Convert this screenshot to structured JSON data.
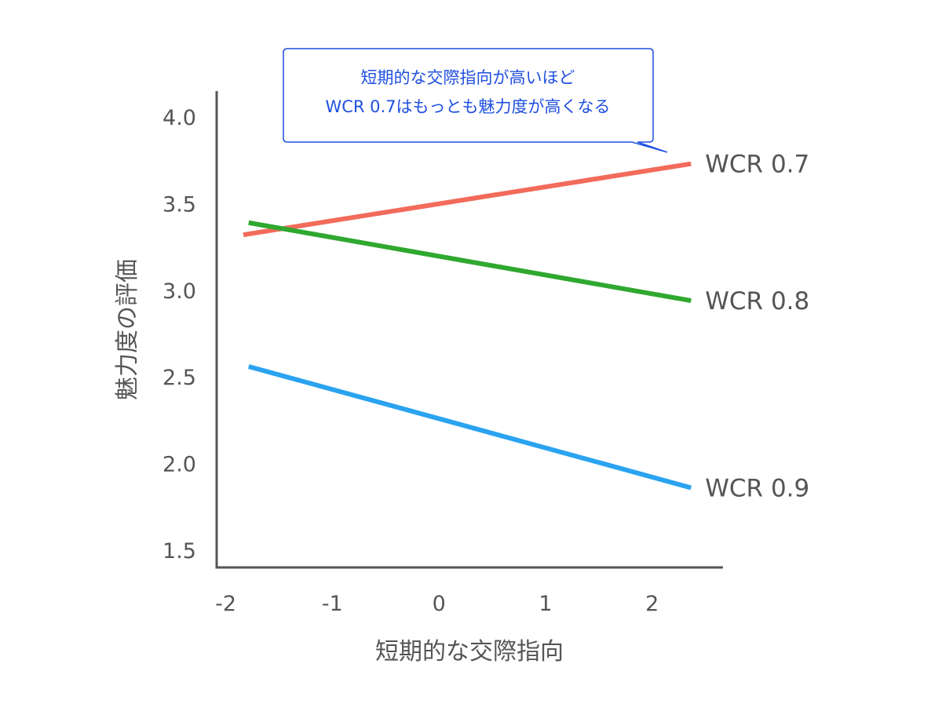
{
  "chart_data": {
    "type": "line",
    "xlabel": "短期的な交際指向",
    "ylabel": "魅力度の評価",
    "xlim": [
      -2.1,
      2.65
    ],
    "ylim": [
      1.4,
      4.15
    ],
    "x_ticks": [
      -2,
      -1,
      0,
      1,
      2
    ],
    "x_tick_labels": [
      "-2",
      "-1",
      "0",
      "1",
      "2"
    ],
    "y_ticks": [
      1.5,
      2.0,
      2.5,
      3.0,
      3.5,
      4.0
    ],
    "y_tick_labels": [
      "1.5",
      "2.0",
      "2.5",
      "3.0",
      "3.5",
      "4.0"
    ],
    "grid": false,
    "legend": "inline-right",
    "series": [
      {
        "name": "WCR 0.7",
        "color": "#f26b5b",
        "x": [
          -1.85,
          2.35
        ],
        "y": [
          3.32,
          3.73
        ]
      },
      {
        "name": "WCR 0.8",
        "color": "#2fa82f",
        "x": [
          -1.8,
          2.35
        ],
        "y": [
          3.39,
          2.94
        ]
      },
      {
        "name": "WCR 0.9",
        "color": "#2aa3f0",
        "x": [
          -1.8,
          2.35
        ],
        "y": [
          2.56,
          1.86
        ]
      }
    ],
    "annotation": {
      "lines": [
        "短期的な交際指向が高いほど",
        "WCR 0.7はもっとも魅力度が高くなる"
      ],
      "color": "#1f4fe0"
    }
  }
}
